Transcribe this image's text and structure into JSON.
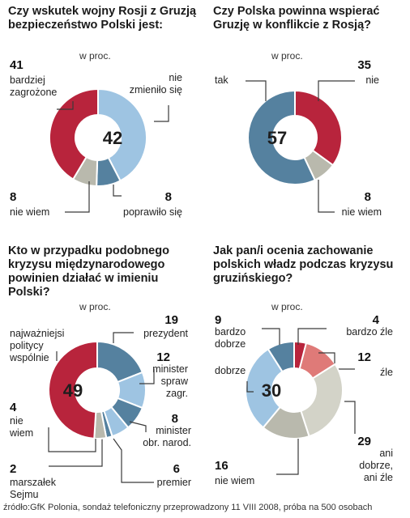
{
  "unit_label": "w proc.",
  "source": "źródło:GfK Polonia, sondaż telefoniczny przeprowadzony 11 VIII 2008, próba na 500 osobach",
  "colors": {
    "red": "#b8243c",
    "light_blue": "#9ec4e2",
    "slate_blue": "#55819f",
    "gray": "#b9b9ad",
    "light_gray": "#d3d3c8",
    "salmon": "#df7a78"
  },
  "chart_data": [
    {
      "type": "pie",
      "title": "Czy wskutek wojny Rosji z Gruzją bezpieczeństwo Polski jest:",
      "unit": "w proc.",
      "center_value": "42",
      "slices": [
        {
          "value": 42,
          "value_text": "",
          "label": "nie\nzmieniło się",
          "color": "#9ec4e2"
        },
        {
          "value": 8,
          "value_text": "8",
          "label": "poprawiło się",
          "color": "#55819f"
        },
        {
          "value": 8,
          "value_text": "8",
          "label": "nie wiem",
          "color": "#b9b9ad"
        },
        {
          "value": 41,
          "value_text": "41",
          "label": "bardziej\nzagrożone",
          "color": "#b8243c"
        }
      ]
    },
    {
      "type": "pie",
      "title": "Czy Polska powinna wspierać Gruzję w konflikcie z Rosją?",
      "unit": "w proc.",
      "center_value": "57",
      "slices": [
        {
          "value": 35,
          "value_text": "35",
          "label": "nie",
          "color": "#b8243c"
        },
        {
          "value": 8,
          "value_text": "8",
          "label": "nie wiem",
          "color": "#b9b9ad"
        },
        {
          "value": 57,
          "value_text": "",
          "label": "tak",
          "color": "#55819f"
        }
      ]
    },
    {
      "type": "pie",
      "title": "Kto w przypadku podobnego kryzysu międzynarodowego powinien działać w imieniu Polski?",
      "unit": "w proc.",
      "center_value": "49",
      "slices": [
        {
          "value": 19,
          "value_text": "19",
          "label": "prezydent",
          "color": "#55819f"
        },
        {
          "value": 12,
          "value_text": "12",
          "label": "minister\nspraw\nzagr.",
          "color": "#9ec4e2"
        },
        {
          "value": 8,
          "value_text": "8",
          "label": "minister\nobr. narod.",
          "color": "#55819f"
        },
        {
          "value": 6,
          "value_text": "6",
          "label": "premier",
          "color": "#9ec4e2"
        },
        {
          "value": 2,
          "value_text": "2",
          "label": "marszałek\nSejmu",
          "color": "#55819f"
        },
        {
          "value": 4,
          "value_text": "4",
          "label": "nie\nwiem",
          "color": "#b9b9ad"
        },
        {
          "value": 49,
          "value_text": "",
          "label": "najważniejsi\npolitycy\nwspólnie",
          "color": "#b8243c"
        }
      ]
    },
    {
      "type": "pie",
      "title": "Jak pan/i ocenia zachowanie polskich władz podczas kryzysu gruzińskiego?",
      "unit": "w proc.",
      "center_value": "30",
      "slices": [
        {
          "value": 4,
          "value_text": "4",
          "label": "bardzo źle",
          "color": "#b8243c"
        },
        {
          "value": 12,
          "value_text": "12",
          "label": "źle",
          "color": "#df7a78"
        },
        {
          "value": 29,
          "value_text": "29",
          "label": "ani\ndobrze,\nani źle",
          "color": "#d3d3c8"
        },
        {
          "value": 16,
          "value_text": "16",
          "label": "nie wiem",
          "color": "#b9b9ad"
        },
        {
          "value": 30,
          "value_text": "",
          "label": "dobrze",
          "color": "#9ec4e2"
        },
        {
          "value": 9,
          "value_text": "9",
          "label": "bardzo\ndobrze",
          "color": "#55819f"
        }
      ]
    }
  ]
}
